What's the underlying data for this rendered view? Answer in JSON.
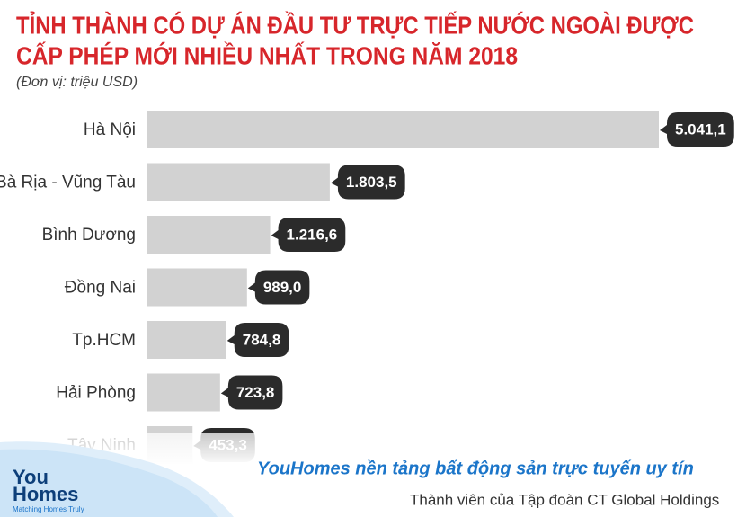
{
  "chart_data": {
    "type": "bar",
    "orientation": "horizontal",
    "title": [
      "TỈNH THÀNH CÓ DỰ ÁN ĐẦU TƯ TRỰC TIẾP NƯỚC NGOÀI ĐƯỢC",
      "CẤP PHÉP MỚI NHIỀU NHẤT TRONG NĂM 2018"
    ],
    "subtitle": "(Đơn vị: triệu USD)",
    "categories": [
      "Hà Nội",
      "Bà Rịa - Vũng Tàu",
      "Bình Dương",
      "Đồng Nai",
      "Tp.HCM",
      "Hải Phòng",
      "Tây Ninh"
    ],
    "values": [
      5041.1,
      1803.5,
      1216.6,
      989.0,
      784.8,
      723.8,
      453.3
    ],
    "value_labels": [
      "5.041,1",
      "1.803,5",
      "1.216,6",
      "989,0",
      "784,8",
      "723,8",
      "453,3"
    ],
    "color": "#d2d2d2"
  },
  "footer": {
    "logo": [
      "You",
      "Homes"
    ],
    "logo_tagline": "Matching Homes Truly",
    "headline": "YouHomes nền tảng bất động sản trực tuyến uy tín",
    "subline": "Thành viên của Tập đoàn CT Global Holdings"
  }
}
